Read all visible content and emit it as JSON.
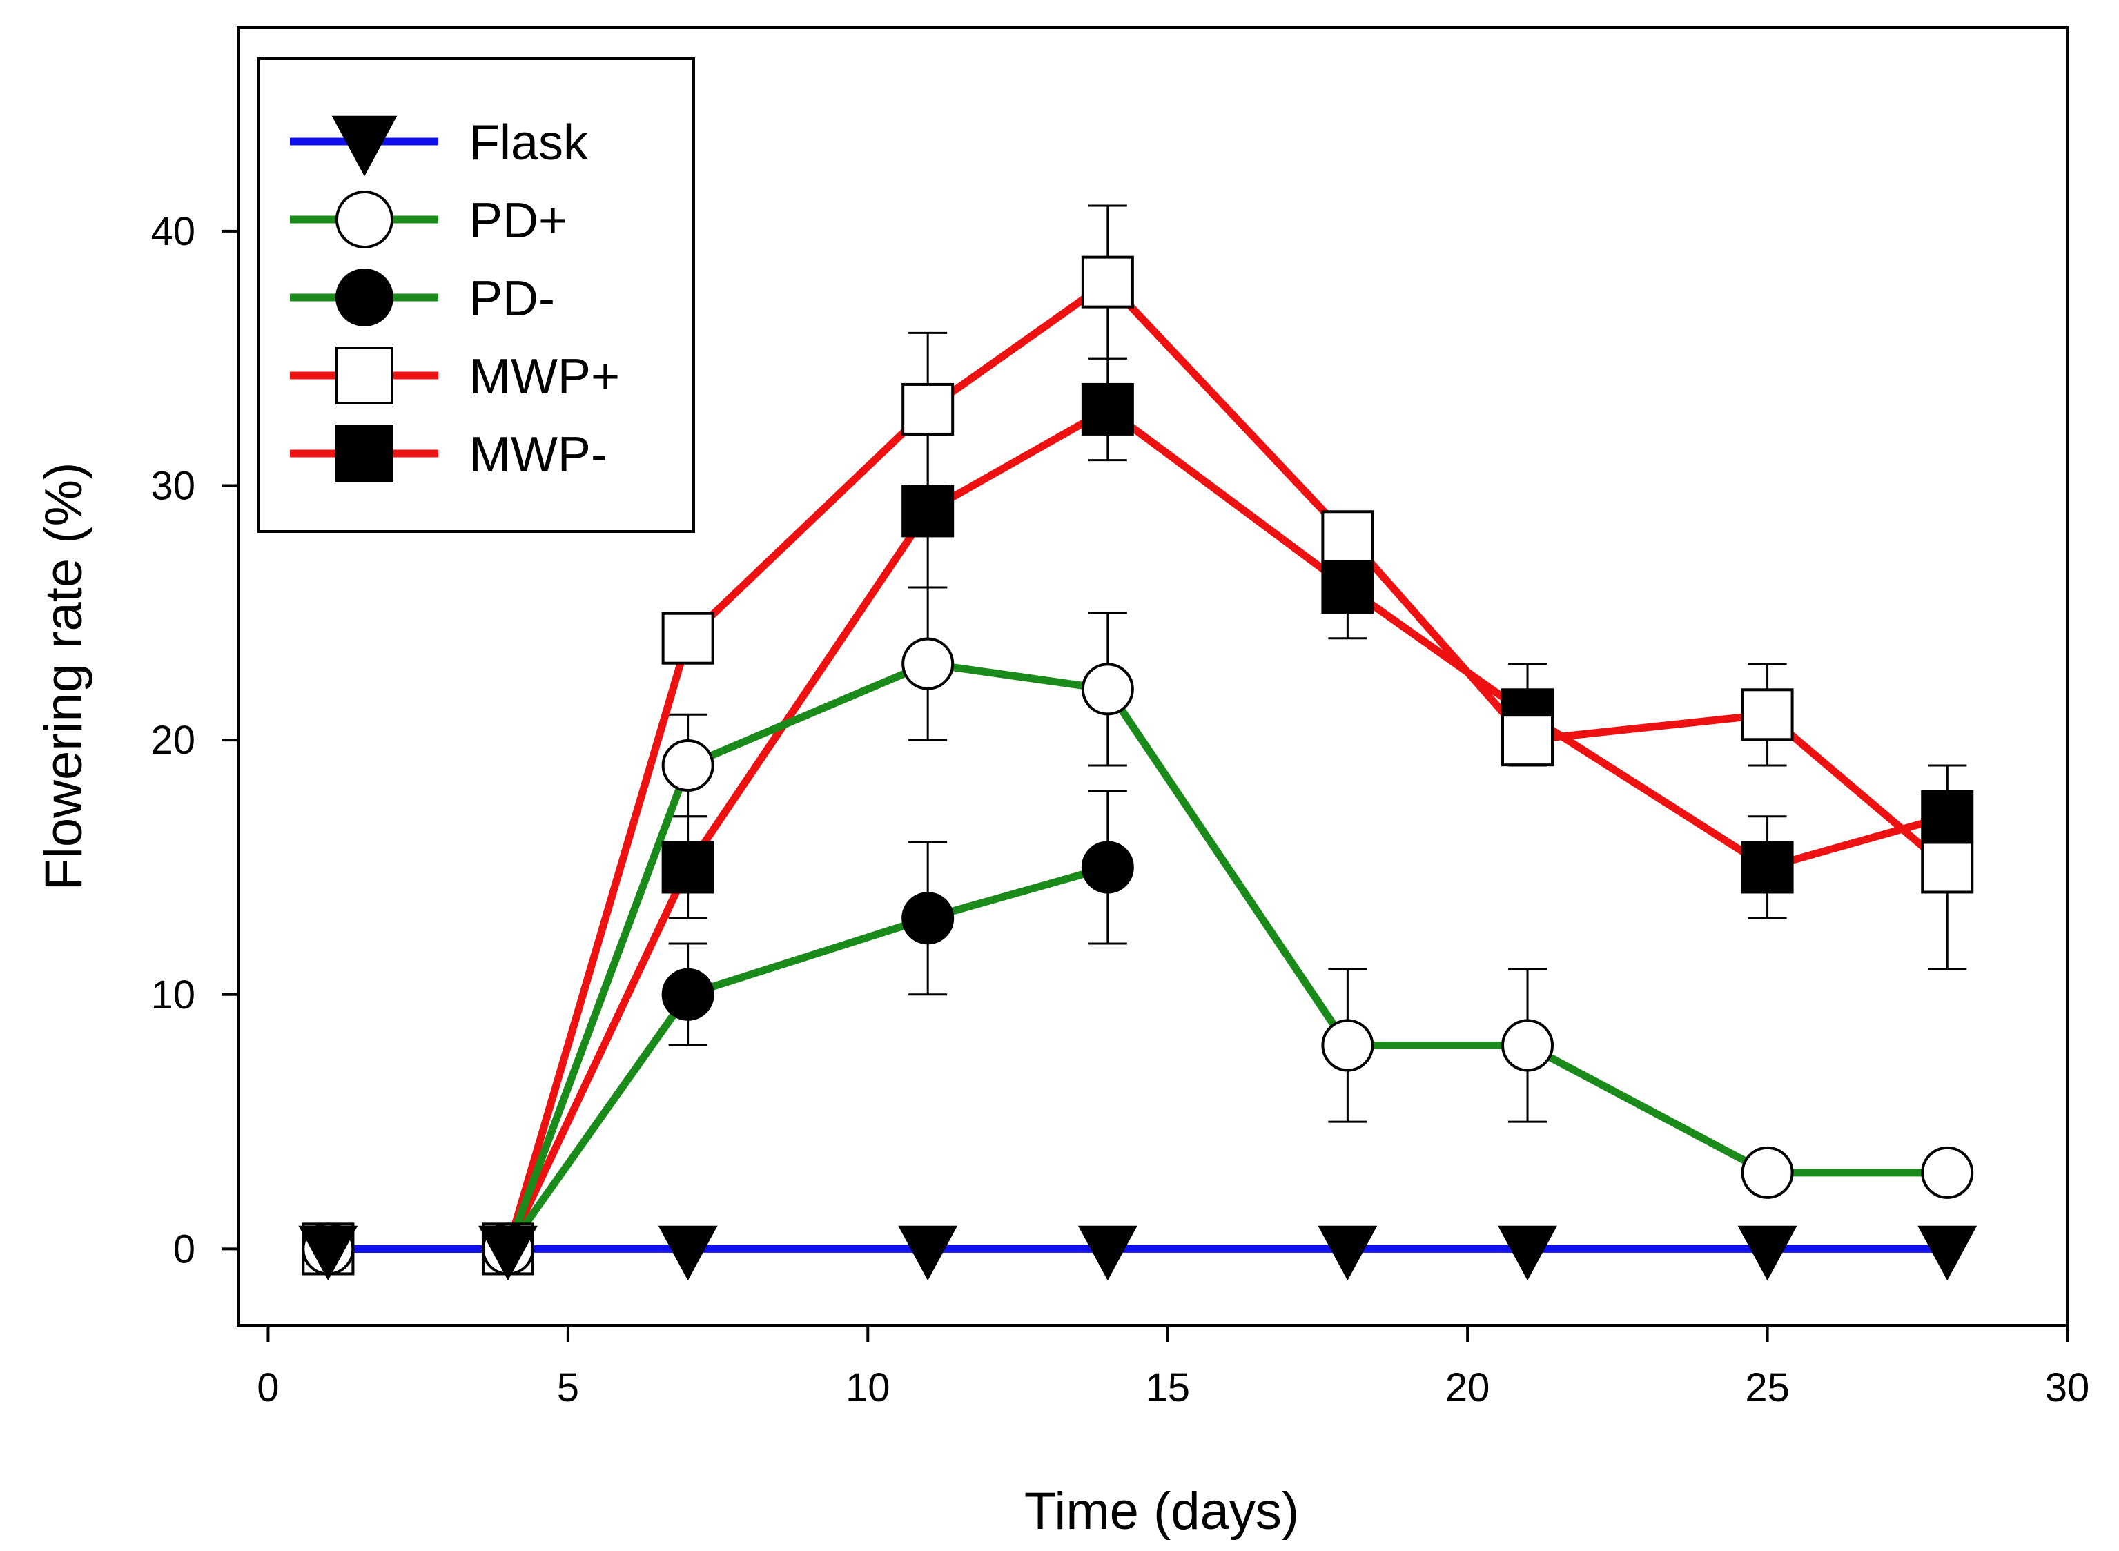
{
  "chart_data": {
    "type": "line",
    "title": "",
    "xlabel": "Time (days)",
    "ylabel": "Flowering rate (%)",
    "xlim": [
      -0.5,
      30
    ],
    "ylim": [
      -3,
      48
    ],
    "xticks": [
      0,
      5,
      10,
      15,
      20,
      25,
      30
    ],
    "yticks": [
      0,
      10,
      20,
      30,
      40
    ],
    "xtick_labels": [
      "0",
      "5",
      "10",
      "15",
      "20",
      "25",
      "30"
    ],
    "ytick_labels": [
      "0",
      "10",
      "20",
      "30",
      "40"
    ],
    "grid": false,
    "legend_position": "top-left",
    "series": [
      {
        "name": "Flask",
        "color": "#1010ee",
        "marker": "triangle-down",
        "fill": "filled",
        "x": [
          1,
          4,
          7,
          11,
          14,
          18,
          21,
          25,
          28
        ],
        "y": [
          0,
          0,
          0,
          0,
          0,
          0,
          0,
          0,
          0
        ],
        "err": [
          0,
          0,
          0,
          0,
          0,
          0,
          0,
          0,
          0
        ]
      },
      {
        "name": "PD+",
        "color": "#1a8a1a",
        "marker": "circle",
        "fill": "open",
        "x": [
          1,
          4,
          7,
          11,
          14,
          18,
          21,
          25,
          28
        ],
        "y": [
          0,
          0,
          19,
          23,
          22,
          8,
          8,
          3,
          3
        ],
        "err": [
          0,
          0,
          2,
          3,
          3,
          3,
          3,
          0,
          0
        ]
      },
      {
        "name": "PD-",
        "color": "#1a8a1a",
        "marker": "circle",
        "fill": "filled",
        "x": [
          1,
          4,
          7,
          11,
          14
        ],
        "y": [
          0,
          0,
          10,
          13,
          15
        ],
        "err": [
          0,
          0,
          2,
          3,
          3
        ]
      },
      {
        "name": "MWP+",
        "color": "#ee1111",
        "marker": "square",
        "fill": "open",
        "x": [
          1,
          4,
          7,
          11,
          14,
          18,
          21,
          25,
          28
        ],
        "y": [
          0,
          0,
          24,
          33,
          38,
          28,
          20,
          21,
          15
        ],
        "err": [
          0,
          0,
          0,
          3,
          3,
          0,
          0,
          2,
          4
        ]
      },
      {
        "name": "MWP-",
        "color": "#ee1111",
        "marker": "square",
        "fill": "filled",
        "x": [
          1,
          4,
          7,
          11,
          14,
          18,
          21,
          25,
          28
        ],
        "y": [
          0,
          0,
          15,
          29,
          33,
          26,
          21,
          15,
          17
        ],
        "err": [
          0,
          0,
          2,
          3,
          2,
          2,
          2,
          2,
          2
        ]
      }
    ]
  }
}
